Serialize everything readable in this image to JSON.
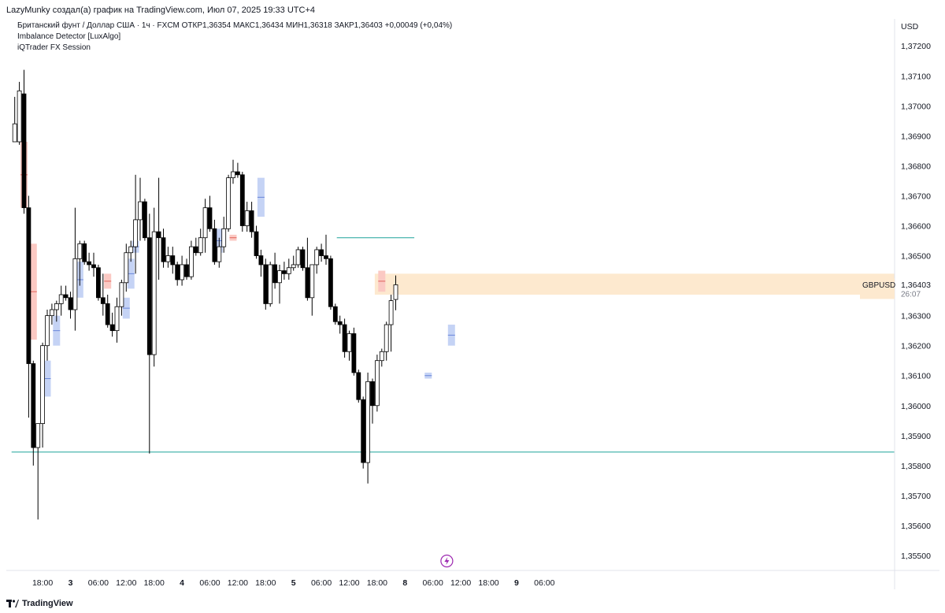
{
  "header": {
    "attribution": "LazyMunky создал(а) график на TradingView.com, Июл 07, 2025 19:33 UTC+4"
  },
  "legend": {
    "symbol_line": "Британский фунт / Доллар США · 1ч · FXCM  ОТКР1,36354  МАКС1,36434  МИН1,36318  ЗАКР1,36403  +0,00049 (+0,04%)",
    "indicator1": "Imbalance Detector [LuxAlgo]",
    "indicator2": "iQTrader FX Session"
  },
  "footer": {
    "brand": "TradingView"
  },
  "colors": {
    "up_body": "#ffffff",
    "candle_outline": "#000000",
    "down_body": "#000000",
    "bull_fvg": "#c5d3f5",
    "bear_fvg": "#fbc9c3",
    "zone": "#fde9cf",
    "level_line": "#1fa39a",
    "axis_text": "#131722",
    "price_tag_bg": "#ffffff"
  },
  "chart_data": {
    "type": "candlestick",
    "symbol": "GBPUSD",
    "currency": "USD",
    "last_price": "1,36403",
    "countdown": "26:07",
    "ylim": [
      1.3545,
      1.3729
    ],
    "y_ticks": [
      "1,37200",
      "1,37100",
      "1,37000",
      "1,36900",
      "1,36800",
      "1,36700",
      "1,36600",
      "1,36500",
      "1,36300",
      "1,36200",
      "1,36100",
      "1,36000",
      "1,35900",
      "1,35800",
      "1,35700",
      "1,35600",
      "1,35500"
    ],
    "x_ticks": [
      {
        "label": "18:00",
        "bar": 6,
        "bold": false
      },
      {
        "label": "3",
        "bar": 12,
        "bold": true
      },
      {
        "label": "06:00",
        "bar": 18,
        "bold": false
      },
      {
        "label": "12:00",
        "bar": 24,
        "bold": false
      },
      {
        "label": "18:00",
        "bar": 30,
        "bold": false
      },
      {
        "label": "4",
        "bar": 36,
        "bold": true
      },
      {
        "label": "06:00",
        "bar": 42,
        "bold": false
      },
      {
        "label": "12:00",
        "bar": 48,
        "bold": false
      },
      {
        "label": "18:00",
        "bar": 54,
        "bold": false
      },
      {
        "label": "5",
        "bar": 60,
        "bold": true
      },
      {
        "label": "06:00",
        "bar": 66,
        "bold": false
      },
      {
        "label": "12:00",
        "bar": 72,
        "bold": false
      },
      {
        "label": "18:00",
        "bar": 78,
        "bold": false
      },
      {
        "label": "8",
        "bar": 84,
        "bold": true
      },
      {
        "label": "06:00",
        "bar": 90,
        "bold": false
      },
      {
        "label": "12:00",
        "bar": 96,
        "bold": false
      },
      {
        "label": "18:00",
        "bar": 102,
        "bold": false
      },
      {
        "label": "9",
        "bar": 108,
        "bold": true
      },
      {
        "label": "06:00",
        "bar": 114,
        "bold": false
      }
    ],
    "candles": [
      {
        "o": 1.3688,
        "h": 1.3703,
        "l": 1.3688,
        "c": 1.3694
      },
      {
        "o": 1.3688,
        "h": 1.3708,
        "l": 1.3687,
        "c": 1.3705
      },
      {
        "o": 1.3704,
        "h": 1.3712,
        "l": 1.3664,
        "c": 1.3666
      },
      {
        "o": 1.3666,
        "h": 1.367,
        "l": 1.3596,
        "c": 1.3614
      },
      {
        "o": 1.3614,
        "h": 1.3615,
        "l": 1.358,
        "c": 1.3586
      },
      {
        "o": 1.3586,
        "h": 1.3594,
        "l": 1.3562,
        "c": 1.3594
      },
      {
        "o": 1.3594,
        "h": 1.3621,
        "l": 1.3586,
        "c": 1.362
      },
      {
        "o": 1.362,
        "h": 1.3632,
        "l": 1.3615,
        "c": 1.363
      },
      {
        "o": 1.363,
        "h": 1.3634,
        "l": 1.3627,
        "c": 1.3632
      },
      {
        "o": 1.3632,
        "h": 1.3635,
        "l": 1.3628,
        "c": 1.3634
      },
      {
        "o": 1.3634,
        "h": 1.364,
        "l": 1.363,
        "c": 1.3637
      },
      {
        "o": 1.3637,
        "h": 1.364,
        "l": 1.3635,
        "c": 1.3636
      },
      {
        "o": 1.3636,
        "h": 1.3638,
        "l": 1.3629,
        "c": 1.3632
      },
      {
        "o": 1.3632,
        "h": 1.3666,
        "l": 1.3625,
        "c": 1.3649
      },
      {
        "o": 1.3649,
        "h": 1.3655,
        "l": 1.364,
        "c": 1.3654
      },
      {
        "o": 1.3654,
        "h": 1.3655,
        "l": 1.3647,
        "c": 1.3648
      },
      {
        "o": 1.3648,
        "h": 1.3651,
        "l": 1.3645,
        "c": 1.3647
      },
      {
        "o": 1.3647,
        "h": 1.3651,
        "l": 1.3643,
        "c": 1.3646
      },
      {
        "o": 1.3646,
        "h": 1.3647,
        "l": 1.3635,
        "c": 1.3636
      },
      {
        "o": 1.3636,
        "h": 1.3644,
        "l": 1.363,
        "c": 1.3634
      },
      {
        "o": 1.3634,
        "h": 1.3637,
        "l": 1.3626,
        "c": 1.3627
      },
      {
        "o": 1.3627,
        "h": 1.3631,
        "l": 1.3623,
        "c": 1.3625
      },
      {
        "o": 1.3625,
        "h": 1.3636,
        "l": 1.3621,
        "c": 1.3633
      },
      {
        "o": 1.3633,
        "h": 1.3642,
        "l": 1.363,
        "c": 1.3641
      },
      {
        "o": 1.3641,
        "h": 1.3654,
        "l": 1.3638,
        "c": 1.3651
      },
      {
        "o": 1.3651,
        "h": 1.3655,
        "l": 1.3648,
        "c": 1.3653
      },
      {
        "o": 1.3653,
        "h": 1.3677,
        "l": 1.3644,
        "c": 1.3662
      },
      {
        "o": 1.3662,
        "h": 1.3676,
        "l": 1.3655,
        "c": 1.3668
      },
      {
        "o": 1.3668,
        "h": 1.3669,
        "l": 1.3655,
        "c": 1.3656
      },
      {
        "o": 1.3656,
        "h": 1.3664,
        "l": 1.3584,
        "c": 1.3617
      },
      {
        "o": 1.3617,
        "h": 1.3666,
        "l": 1.3613,
        "c": 1.3658
      },
      {
        "o": 1.3658,
        "h": 1.3676,
        "l": 1.3642,
        "c": 1.3656
      },
      {
        "o": 1.3656,
        "h": 1.3659,
        "l": 1.3646,
        "c": 1.3648
      },
      {
        "o": 1.3648,
        "h": 1.3653,
        "l": 1.3646,
        "c": 1.365
      },
      {
        "o": 1.365,
        "h": 1.3653,
        "l": 1.3644,
        "c": 1.3647
      },
      {
        "o": 1.3647,
        "h": 1.3648,
        "l": 1.364,
        "c": 1.3642
      },
      {
        "o": 1.3642,
        "h": 1.365,
        "l": 1.364,
        "c": 1.3647
      },
      {
        "o": 1.3647,
        "h": 1.3649,
        "l": 1.3642,
        "c": 1.3643
      },
      {
        "o": 1.3643,
        "h": 1.3655,
        "l": 1.3642,
        "c": 1.3653
      },
      {
        "o": 1.3653,
        "h": 1.3656,
        "l": 1.365,
        "c": 1.3651
      },
      {
        "o": 1.3651,
        "h": 1.3659,
        "l": 1.365,
        "c": 1.3656
      },
      {
        "o": 1.3656,
        "h": 1.3669,
        "l": 1.3651,
        "c": 1.3666
      },
      {
        "o": 1.3666,
        "h": 1.367,
        "l": 1.3658,
        "c": 1.3659
      },
      {
        "o": 1.3659,
        "h": 1.3662,
        "l": 1.3647,
        "c": 1.3648
      },
      {
        "o": 1.3648,
        "h": 1.3656,
        "l": 1.3646,
        "c": 1.3653
      },
      {
        "o": 1.3653,
        "h": 1.3663,
        "l": 1.3651,
        "c": 1.3659
      },
      {
        "o": 1.3659,
        "h": 1.3677,
        "l": 1.3658,
        "c": 1.3676
      },
      {
        "o": 1.3676,
        "h": 1.3682,
        "l": 1.3674,
        "c": 1.3678
      },
      {
        "o": 1.3678,
        "h": 1.3681,
        "l": 1.3676,
        "c": 1.3677
      },
      {
        "o": 1.3677,
        "h": 1.3678,
        "l": 1.3658,
        "c": 1.366
      },
      {
        "o": 1.366,
        "h": 1.3668,
        "l": 1.3658,
        "c": 1.3665
      },
      {
        "o": 1.3665,
        "h": 1.3668,
        "l": 1.3656,
        "c": 1.3658
      },
      {
        "o": 1.3658,
        "h": 1.366,
        "l": 1.3649,
        "c": 1.365
      },
      {
        "o": 1.365,
        "h": 1.3652,
        "l": 1.3643,
        "c": 1.3647
      },
      {
        "o": 1.3647,
        "h": 1.3649,
        "l": 1.3632,
        "c": 1.3634
      },
      {
        "o": 1.3634,
        "h": 1.3648,
        "l": 1.3633,
        "c": 1.3647
      },
      {
        "o": 1.3647,
        "h": 1.3651,
        "l": 1.3639,
        "c": 1.3641
      },
      {
        "o": 1.3641,
        "h": 1.3647,
        "l": 1.3634,
        "c": 1.3645
      },
      {
        "o": 1.3645,
        "h": 1.3648,
        "l": 1.3642,
        "c": 1.3644
      },
      {
        "o": 1.3644,
        "h": 1.3649,
        "l": 1.3642,
        "c": 1.3646
      },
      {
        "o": 1.3646,
        "h": 1.365,
        "l": 1.3645,
        "c": 1.3647
      },
      {
        "o": 1.3647,
        "h": 1.3653,
        "l": 1.3646,
        "c": 1.3652
      },
      {
        "o": 1.3652,
        "h": 1.3653,
        "l": 1.3645,
        "c": 1.3646
      },
      {
        "o": 1.3646,
        "h": 1.3656,
        "l": 1.3635,
        "c": 1.3636
      },
      {
        "o": 1.3636,
        "h": 1.3647,
        "l": 1.363,
        "c": 1.3647
      },
      {
        "o": 1.3647,
        "h": 1.3653,
        "l": 1.3644,
        "c": 1.3652
      },
      {
        "o": 1.3652,
        "h": 1.3654,
        "l": 1.3648,
        "c": 1.365
      },
      {
        "o": 1.365,
        "h": 1.3657,
        "l": 1.3647,
        "c": 1.3649
      },
      {
        "o": 1.3649,
        "h": 1.365,
        "l": 1.3632,
        "c": 1.3633
      },
      {
        "o": 1.3633,
        "h": 1.3634,
        "l": 1.3627,
        "c": 1.3628
      },
      {
        "o": 1.3628,
        "h": 1.363,
        "l": 1.3624,
        "c": 1.3627
      },
      {
        "o": 1.3627,
        "h": 1.3629,
        "l": 1.3616,
        "c": 1.3618
      },
      {
        "o": 1.3618,
        "h": 1.3625,
        "l": 1.3615,
        "c": 1.3624
      },
      {
        "o": 1.3624,
        "h": 1.3626,
        "l": 1.361,
        "c": 1.3611
      },
      {
        "o": 1.3611,
        "h": 1.3612,
        "l": 1.3601,
        "c": 1.3602
      },
      {
        "o": 1.3602,
        "h": 1.3603,
        "l": 1.3579,
        "c": 1.3581
      },
      {
        "o": 1.3581,
        "h": 1.3611,
        "l": 1.3574,
        "c": 1.3608
      },
      {
        "o": 1.3608,
        "h": 1.3609,
        "l": 1.3594,
        "c": 1.36
      },
      {
        "o": 1.36,
        "h": 1.3617,
        "l": 1.3598,
        "c": 1.3615
      },
      {
        "o": 1.3615,
        "h": 1.3619,
        "l": 1.3613,
        "c": 1.3618
      },
      {
        "o": 1.3618,
        "h": 1.3628,
        "l": 1.3615,
        "c": 1.3627
      },
      {
        "o": 1.3627,
        "h": 1.3637,
        "l": 1.3618,
        "c": 1.3635
      },
      {
        "o": 1.36354,
        "h": 1.36434,
        "l": 1.36318,
        "c": 1.36403
      }
    ],
    "fvg_boxes": [
      {
        "kind": "bear",
        "bar": 2,
        "top": 1.3688,
        "bottom": 1.3666
      },
      {
        "kind": "bear",
        "bar": 4,
        "top": 1.3654,
        "bottom": 1.3622
      },
      {
        "kind": "bull",
        "bar": 7,
        "top": 1.3615,
        "bottom": 1.3603
      },
      {
        "kind": "bull",
        "bar": 9,
        "top": 1.363,
        "bottom": 1.362
      },
      {
        "kind": "bull",
        "bar": 14,
        "top": 1.3648,
        "bottom": 1.3636
      },
      {
        "kind": "bear",
        "bar": 20,
        "top": 1.3644,
        "bottom": 1.3639
      },
      {
        "kind": "bull",
        "bar": 24,
        "top": 1.3636,
        "bottom": 1.3629
      },
      {
        "kind": "bull",
        "bar": 25,
        "top": 1.3649,
        "bottom": 1.3639
      },
      {
        "kind": "bull",
        "bar": 26,
        "top": 1.3655,
        "bottom": 1.3651
      },
      {
        "kind": "bull",
        "bar": 44,
        "top": 1.3659,
        "bottom": 1.3651
      },
      {
        "kind": "bear",
        "bar": 47,
        "top": 1.3657,
        "bottom": 1.3655
      },
      {
        "kind": "bull",
        "bar": 53,
        "top": 1.3676,
        "bottom": 1.3663
      },
      {
        "kind": "bear",
        "bar": 79,
        "top": 1.3645,
        "bottom": 1.3638
      },
      {
        "kind": "bull",
        "bar": 89,
        "top": 1.3611,
        "bottom": 1.3609
      },
      {
        "kind": "bull",
        "bar": 94,
        "top": 1.3627,
        "bottom": 1.362
      }
    ],
    "zone": {
      "from_bar": 78,
      "top": 1.3644,
      "bottom": 1.3637
    },
    "levels": [
      {
        "price": 1.35845,
        "from_bar": 0
      },
      {
        "price": 1.3656,
        "from_bar": 70,
        "to_bar": 86
      }
    ]
  }
}
